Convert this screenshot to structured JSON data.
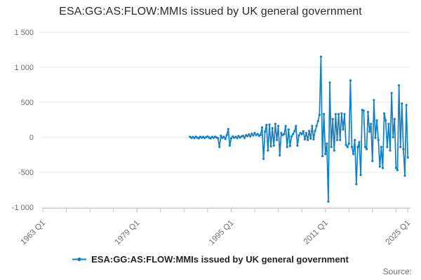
{
  "title": "ESA:GG:AS:FLOW:MMIs issued by UK general government",
  "source_label": "Source:",
  "legend": {
    "label": "ESA:GG:AS:FLOW:MMIs issued by UK general government"
  },
  "colors": {
    "line": "#1380c4",
    "grid": "#e7e7e7",
    "axis": "#b9c6d3",
    "tick_label": "#6e6e6e",
    "title_text": "#2b2b2b",
    "legend_text": "#222222"
  },
  "chart_data": {
    "type": "line",
    "title": "ESA:GG:AS:FLOW:MMIs issued by UK general government",
    "xlabel": "",
    "ylabel": "",
    "grid": "horizontal",
    "legend_position": "bottom",
    "marker": "circle",
    "y_axis": {
      "range": [
        -1000,
        1500
      ],
      "ticks": [
        {
          "label": "1 500",
          "value": 1500
        },
        {
          "label": "1 000",
          "value": 1000
        },
        {
          "label": "500",
          "value": 500
        },
        {
          "label": "0",
          "value": 0
        },
        {
          "label": "-500",
          "value": -500
        },
        {
          "label": "-1 000",
          "value": -1000
        }
      ]
    },
    "x_axis": {
      "range": [
        1963,
        2025.5
      ],
      "minor_tick_every_years": 4,
      "minor_tick_start": 1963,
      "minor_tick_end": 2023,
      "labeled_ticks": [
        {
          "label": "1963 Q1",
          "year": 1963
        },
        {
          "label": "1979 Q1",
          "year": 1979
        },
        {
          "label": "1995 Q1",
          "year": 1995
        },
        {
          "label": "2011 Q1",
          "year": 2011
        },
        {
          "label": "2025 Q1",
          "year": 2025
        }
      ]
    },
    "series": [
      {
        "name": "ESA:GG:AS:FLOW:MMIs issued by UK general government",
        "color": "#1380c4",
        "frequency": "quarterly",
        "start_year": 1988,
        "start_quarter": 1,
        "end_label": "2025 Q1",
        "values": [
          5,
          -10,
          3,
          -12,
          8,
          -5,
          -15,
          6,
          -8,
          4,
          -12,
          2,
          10,
          -6,
          -18,
          5,
          -10,
          8,
          -4,
          -14,
          -140,
          20,
          -10,
          6,
          -25,
          30,
          115,
          -120,
          -15,
          10,
          -8,
          5,
          -12,
          15,
          -5,
          10,
          20,
          -10,
          30,
          15,
          40,
          10,
          50,
          25,
          60,
          30,
          45,
          20,
          35,
          140,
          -310,
          80,
          175,
          -190,
          180,
          -130,
          130,
          -120,
          190,
          -40,
          160,
          -260,
          60,
          30,
          45,
          160,
          -140,
          110,
          -125,
          10,
          45,
          85,
          160,
          -120,
          25,
          60,
          45,
          85,
          -30,
          60,
          -40,
          90,
          -20,
          160,
          -30,
          90,
          160,
          230,
          320,
          1150,
          -270,
          330,
          -240,
          -90,
          -920,
          780,
          -140,
          260,
          -190,
          330,
          -40,
          330,
          -40,
          340,
          110,
          330,
          -110,
          -140,
          -90,
          810,
          -140,
          -240,
          -40,
          -670,
          -140,
          -70,
          -540,
          390,
          380,
          -140,
          -170,
          360,
          80,
          190,
          -340,
          530,
          -10,
          240,
          -40,
          -420,
          -140,
          -440,
          340,
          240,
          -140,
          190,
          -190,
          630,
          0,
          260,
          -440,
          -470,
          740,
          -140,
          480,
          -170,
          -550,
          460,
          -290
        ]
      }
    ]
  }
}
